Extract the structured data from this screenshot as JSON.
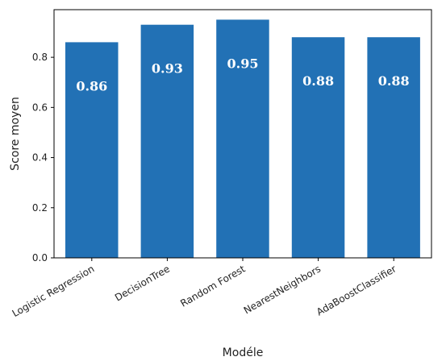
{
  "chart_data": {
    "type": "bar",
    "categories": [
      "Logistic Regression",
      "DecisionTree",
      "Random Forest",
      "NearestNeighbors",
      "AdaBoostClassifier"
    ],
    "values": [
      0.86,
      0.93,
      0.95,
      0.88,
      0.88
    ],
    "data_labels": [
      "0.86",
      "0.93",
      "0.95",
      "0.88",
      "0.88"
    ],
    "title": "",
    "xlabel": "Modéle",
    "ylabel": "Score moyen",
    "ylim": [
      0,
      0.99
    ],
    "yticks": [
      "0.0",
      "0.2",
      "0.4",
      "0.6",
      "0.8"
    ],
    "bar_color": "#2271b5",
    "grid": false,
    "legend": "none"
  }
}
